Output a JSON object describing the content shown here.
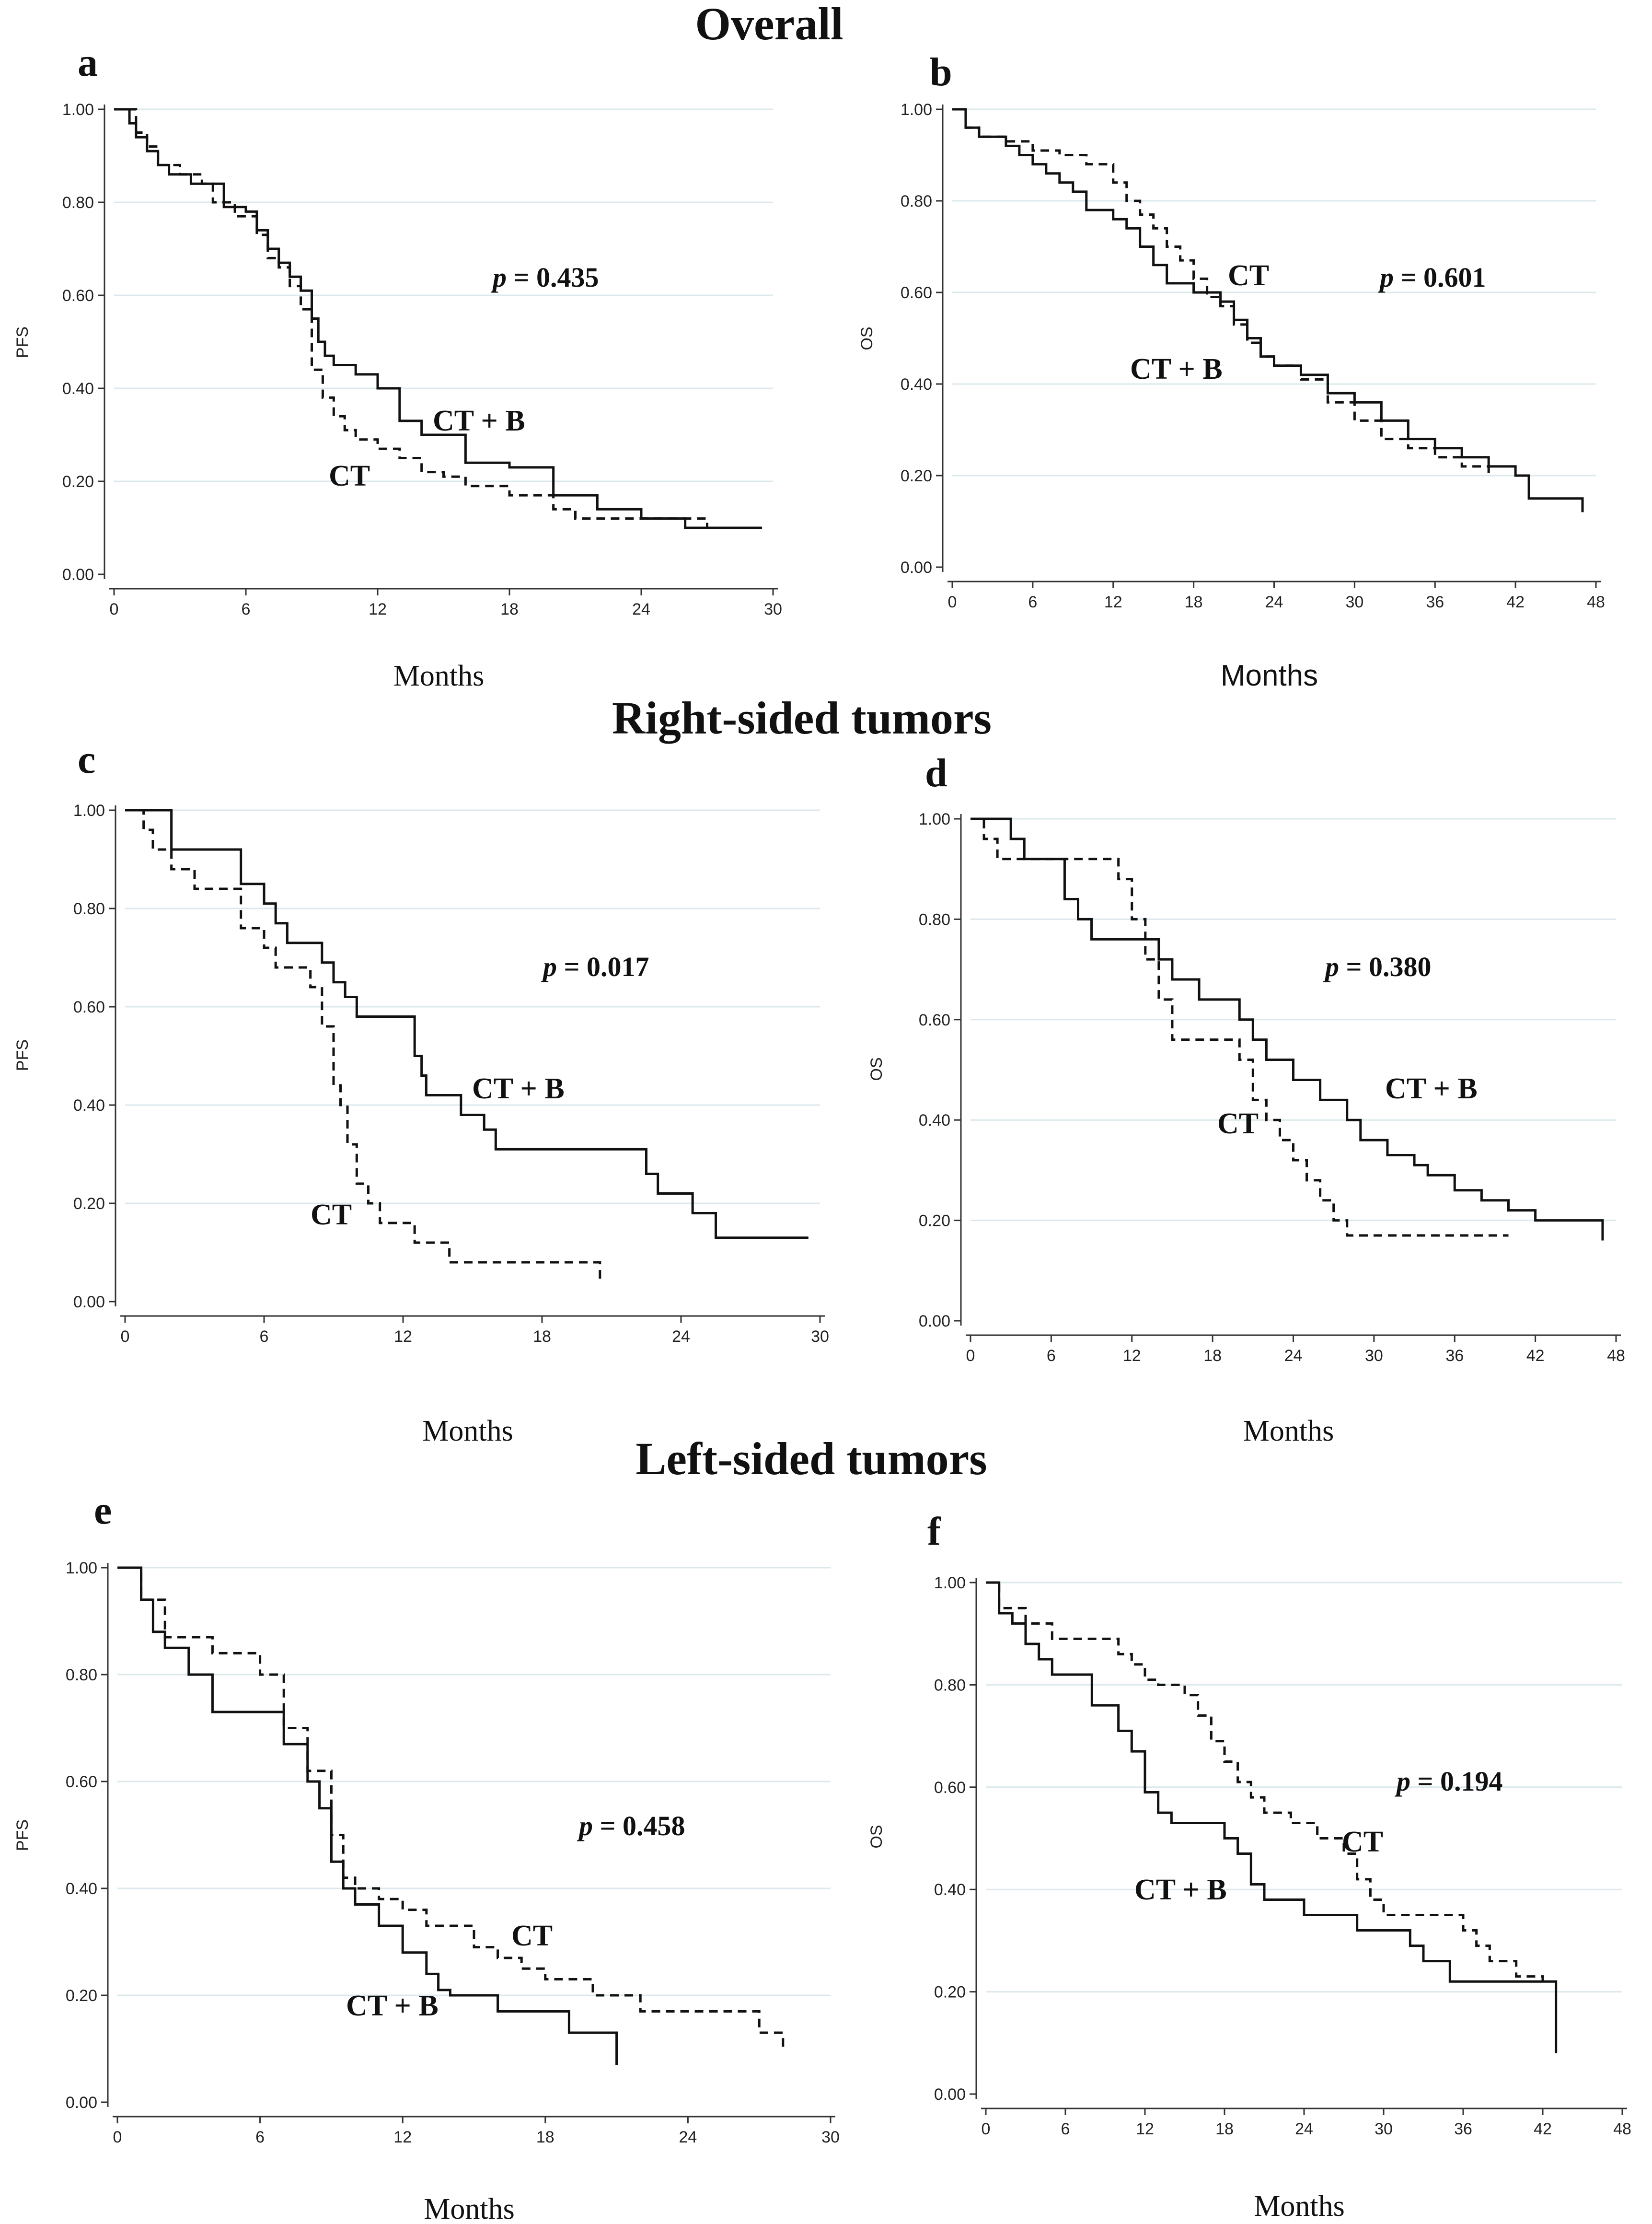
{
  "sections": [
    {
      "title": "Overall"
    },
    {
      "title": "Right-sided tumors"
    },
    {
      "title": "Left-sided tumors"
    }
  ],
  "chart_data": [
    {
      "panel": "a",
      "type": "line",
      "ylabel": "PFS",
      "xlabel": "Months",
      "xlabel_font": "serif",
      "xlim": [
        0,
        30
      ],
      "ylim": [
        0,
        1
      ],
      "xticks": [
        0,
        6,
        12,
        18,
        24,
        30
      ],
      "yticks": [
        "0.00",
        "0.20",
        "0.40",
        "0.60",
        "0.80",
        "1.00"
      ],
      "pvalue_prefix": "p",
      "pvalue_text": "= 0.435",
      "series": [
        {
          "name": "CT + B",
          "style": "solid",
          "x": [
            0,
            0.7,
            1,
            1.5,
            2,
            2.5,
            3.5,
            5,
            6,
            6.5,
            7,
            7.5,
            8,
            8.5,
            9,
            9.3,
            9.6,
            10,
            11,
            12,
            13,
            14,
            16,
            18,
            20,
            22,
            24,
            26,
            29.5
          ],
          "y": [
            1,
            0.97,
            0.94,
            0.91,
            0.88,
            0.86,
            0.84,
            0.79,
            0.78,
            0.74,
            0.7,
            0.67,
            0.64,
            0.61,
            0.55,
            0.5,
            0.47,
            0.45,
            0.43,
            0.4,
            0.33,
            0.3,
            0.24,
            0.23,
            0.17,
            0.14,
            0.12,
            0.1,
            0.1
          ]
        },
        {
          "name": "CT",
          "style": "dashed",
          "x": [
            0,
            1,
            1.5,
            2,
            3,
            4,
            4.5,
            5.5,
            6.5,
            7,
            7.5,
            8,
            8.5,
            9,
            9.5,
            10,
            10.5,
            11,
            12,
            13,
            14,
            15,
            16,
            18,
            20,
            21,
            24,
            27,
            28
          ],
          "y": [
            1,
            0.95,
            0.92,
            0.88,
            0.86,
            0.84,
            0.8,
            0.77,
            0.73,
            0.68,
            0.66,
            0.62,
            0.57,
            0.44,
            0.38,
            0.34,
            0.31,
            0.29,
            0.27,
            0.25,
            0.22,
            0.21,
            0.19,
            0.17,
            0.14,
            0.12,
            0.12,
            0.1,
            0.1
          ]
        }
      ],
      "annotations": [
        {
          "text": "CT + B"
        },
        {
          "text": "CT"
        }
      ]
    },
    {
      "panel": "b",
      "type": "line",
      "ylabel": "OS",
      "xlabel": "Months",
      "xlabel_font": "sans",
      "xlim": [
        0,
        48
      ],
      "ylim": [
        0,
        1
      ],
      "xticks": [
        0,
        6,
        12,
        18,
        24,
        30,
        36,
        42,
        48
      ],
      "yticks": [
        "0.00",
        "0.20",
        "0.40",
        "0.60",
        "0.80",
        "1.00"
      ],
      "pvalue_prefix": "p",
      "pvalue_text": "= 0.601",
      "series": [
        {
          "name": "CT + B",
          "style": "solid",
          "x": [
            0,
            1,
            2,
            4,
            5,
            6,
            7,
            8,
            9,
            10,
            12,
            13,
            14,
            15,
            16,
            18,
            20,
            21,
            22,
            23,
            24,
            26,
            28,
            30,
            32,
            34,
            36,
            38,
            40,
            42,
            43,
            47
          ],
          "y": [
            1,
            0.96,
            0.94,
            0.92,
            0.9,
            0.88,
            0.86,
            0.84,
            0.82,
            0.78,
            0.76,
            0.74,
            0.7,
            0.66,
            0.62,
            0.6,
            0.58,
            0.54,
            0.5,
            0.46,
            0.44,
            0.42,
            0.38,
            0.36,
            0.32,
            0.28,
            0.26,
            0.24,
            0.22,
            0.2,
            0.15,
            0.12
          ]
        },
        {
          "name": "CT",
          "style": "dashed",
          "x": [
            0,
            1,
            2,
            4,
            6,
            8,
            10,
            12,
            13,
            14,
            15,
            16,
            17,
            18,
            19,
            20,
            21,
            22,
            23,
            24,
            26,
            28,
            30,
            32,
            34,
            36,
            38,
            40
          ],
          "y": [
            1,
            0.96,
            0.94,
            0.93,
            0.91,
            0.9,
            0.88,
            0.84,
            0.8,
            0.77,
            0.74,
            0.7,
            0.67,
            0.63,
            0.59,
            0.57,
            0.53,
            0.49,
            0.46,
            0.44,
            0.41,
            0.36,
            0.32,
            0.28,
            0.26,
            0.24,
            0.22,
            0.2
          ]
        }
      ],
      "annotations": [
        {
          "text": "CT"
        },
        {
          "text": "CT + B"
        }
      ]
    },
    {
      "panel": "c",
      "type": "line",
      "ylabel": "PFS",
      "xlabel": "Months",
      "xlabel_font": "serif",
      "xlim": [
        0,
        30
      ],
      "ylim": [
        0,
        1
      ],
      "xticks": [
        0,
        6,
        12,
        18,
        24,
        30
      ],
      "yticks": [
        "0.00",
        "0.20",
        "0.40",
        "0.60",
        "0.80",
        "1.00"
      ],
      "pvalue_prefix": "p",
      "pvalue_text": "= 0.017",
      "series": [
        {
          "name": "CT + B",
          "style": "solid",
          "x": [
            0,
            1.8,
            2,
            4.5,
            5,
            6,
            6.5,
            7,
            8.5,
            9,
            9.5,
            10,
            12.5,
            12.8,
            13,
            14.5,
            15.5,
            16,
            22.5,
            23,
            24.5,
            25.5,
            29.5
          ],
          "y": [
            1,
            1,
            0.92,
            0.92,
            0.85,
            0.81,
            0.77,
            0.73,
            0.69,
            0.65,
            0.62,
            0.58,
            0.5,
            0.46,
            0.42,
            0.38,
            0.35,
            0.31,
            0.26,
            0.22,
            0.18,
            0.13,
            0.13
          ]
        },
        {
          "name": "CT",
          "style": "dashed",
          "x": [
            0,
            0.8,
            1.2,
            2,
            3,
            4.5,
            5,
            6,
            6.5,
            8,
            8.5,
            9,
            9.3,
            9.6,
            10,
            10.5,
            11,
            12.5,
            14,
            15,
            20.5
          ],
          "y": [
            1,
            0.96,
            0.92,
            0.88,
            0.84,
            0.84,
            0.76,
            0.72,
            0.68,
            0.64,
            0.56,
            0.44,
            0.4,
            0.32,
            0.24,
            0.2,
            0.16,
            0.12,
            0.08,
            0.08,
            0.04
          ]
        }
      ],
      "annotations": [
        {
          "text": "CT + B"
        },
        {
          "text": "CT"
        }
      ]
    },
    {
      "panel": "d",
      "type": "line",
      "ylabel": "OS",
      "xlabel": "Months",
      "xlabel_font": "serif",
      "xlim": [
        0,
        48
      ],
      "ylim": [
        0,
        1
      ],
      "xticks": [
        0,
        6,
        12,
        18,
        24,
        30,
        36,
        42,
        48
      ],
      "yticks": [
        "0.00",
        "0.20",
        "0.40",
        "0.60",
        "0.80",
        "1.00"
      ],
      "pvalue_prefix": "p",
      "pvalue_text": "= 0.380",
      "series": [
        {
          "name": "CT + B",
          "style": "solid",
          "x": [
            0,
            3,
            4,
            6,
            7,
            8,
            9,
            12,
            14,
            15,
            16,
            17,
            18,
            20,
            21,
            22,
            24,
            26,
            28,
            29,
            31,
            33,
            34,
            36,
            38,
            40,
            42,
            47
          ],
          "y": [
            1,
            0.96,
            0.92,
            0.92,
            0.84,
            0.8,
            0.76,
            0.76,
            0.72,
            0.68,
            0.68,
            0.64,
            0.64,
            0.6,
            0.56,
            0.52,
            0.48,
            0.44,
            0.4,
            0.36,
            0.33,
            0.31,
            0.29,
            0.26,
            0.24,
            0.22,
            0.2,
            0.16
          ]
        },
        {
          "name": "CT",
          "style": "dashed",
          "x": [
            0,
            1,
            2,
            10,
            11,
            12,
            13,
            14,
            15,
            20,
            21,
            22,
            23,
            24,
            25,
            26,
            27,
            28,
            29,
            30,
            40
          ],
          "y": [
            1,
            0.96,
            0.92,
            0.92,
            0.88,
            0.8,
            0.72,
            0.64,
            0.56,
            0.52,
            0.44,
            0.4,
            0.36,
            0.32,
            0.28,
            0.24,
            0.2,
            0.17,
            0.17,
            0.17,
            0.17
          ]
        }
      ],
      "annotations": [
        {
          "text": "CT + B"
        },
        {
          "text": "CT"
        }
      ]
    },
    {
      "panel": "e",
      "type": "line",
      "ylabel": "PFS",
      "xlabel": "Months",
      "xlabel_font": "serif",
      "xlim": [
        0,
        30
      ],
      "ylim": [
        0,
        1
      ],
      "xticks": [
        0,
        6,
        12,
        18,
        24,
        30
      ],
      "yticks": [
        "0.00",
        "0.20",
        "0.40",
        "0.60",
        "0.80",
        "1.00"
      ],
      "pvalue_prefix": "p",
      "pvalue_text": "= 0.458",
      "series": [
        {
          "name": "CT + B",
          "style": "solid",
          "x": [
            0,
            1,
            1.5,
            2,
            3,
            4,
            6,
            7,
            8,
            8.5,
            9,
            9.5,
            10,
            11,
            12,
            13,
            13.5,
            14,
            16,
            19,
            21
          ],
          "y": [
            1,
            0.94,
            0.88,
            0.85,
            0.8,
            0.73,
            0.73,
            0.67,
            0.6,
            0.55,
            0.45,
            0.4,
            0.37,
            0.33,
            0.28,
            0.24,
            0.21,
            0.2,
            0.17,
            0.13,
            0.07
          ]
        },
        {
          "name": "CT",
          "style": "dashed",
          "x": [
            0,
            1,
            2,
            4,
            6,
            7,
            8,
            9,
            9.5,
            10,
            11,
            12,
            13,
            15,
            16,
            17,
            18,
            20,
            22,
            26,
            27,
            28
          ],
          "y": [
            1,
            0.94,
            0.87,
            0.84,
            0.8,
            0.7,
            0.62,
            0.5,
            0.42,
            0.4,
            0.38,
            0.36,
            0.33,
            0.29,
            0.27,
            0.25,
            0.23,
            0.2,
            0.17,
            0.17,
            0.13,
            0.1
          ]
        }
      ],
      "annotations": [
        {
          "text": "CT"
        },
        {
          "text": "CT + B"
        }
      ]
    },
    {
      "panel": "f",
      "type": "line",
      "ylabel": "OS",
      "xlabel": "Months",
      "xlabel_font": "serif",
      "xlim": [
        0,
        48
      ],
      "ylim": [
        0,
        1
      ],
      "xticks": [
        0,
        6,
        12,
        18,
        24,
        30,
        36,
        42,
        48
      ],
      "yticks": [
        "0.00",
        "0.20",
        "0.40",
        "0.60",
        "0.80",
        "1.00"
      ],
      "pvalue_prefix": "p",
      "pvalue_text": "= 0.194",
      "series": [
        {
          "name": "CT + B",
          "style": "solid",
          "x": [
            0,
            1,
            2,
            3,
            4,
            5,
            6,
            8,
            10,
            11,
            12,
            13,
            14,
            16,
            18,
            19,
            20,
            21,
            22,
            24,
            26,
            28,
            30,
            32,
            33,
            35,
            37,
            39,
            43
          ],
          "y": [
            1,
            0.94,
            0.92,
            0.88,
            0.85,
            0.82,
            0.82,
            0.76,
            0.71,
            0.67,
            0.59,
            0.55,
            0.53,
            0.53,
            0.5,
            0.47,
            0.41,
            0.38,
            0.38,
            0.35,
            0.35,
            0.32,
            0.32,
            0.29,
            0.26,
            0.22,
            0.22,
            0.22,
            0.08
          ]
        },
        {
          "name": "CT",
          "style": "dashed",
          "x": [
            0,
            1,
            3,
            5,
            7,
            10,
            11,
            12,
            13,
            15,
            16,
            17,
            18,
            19,
            20,
            21,
            23,
            25,
            27,
            28,
            29,
            30,
            35,
            36,
            37,
            38,
            40,
            42
          ],
          "y": [
            1,
            0.95,
            0.92,
            0.89,
            0.89,
            0.86,
            0.84,
            0.81,
            0.8,
            0.78,
            0.74,
            0.69,
            0.65,
            0.61,
            0.58,
            0.55,
            0.53,
            0.5,
            0.47,
            0.42,
            0.38,
            0.35,
            0.35,
            0.32,
            0.29,
            0.26,
            0.23,
            0.22
          ]
        }
      ],
      "annotations": [
        {
          "text": "CT"
        },
        {
          "text": "CT + B"
        }
      ]
    }
  ]
}
